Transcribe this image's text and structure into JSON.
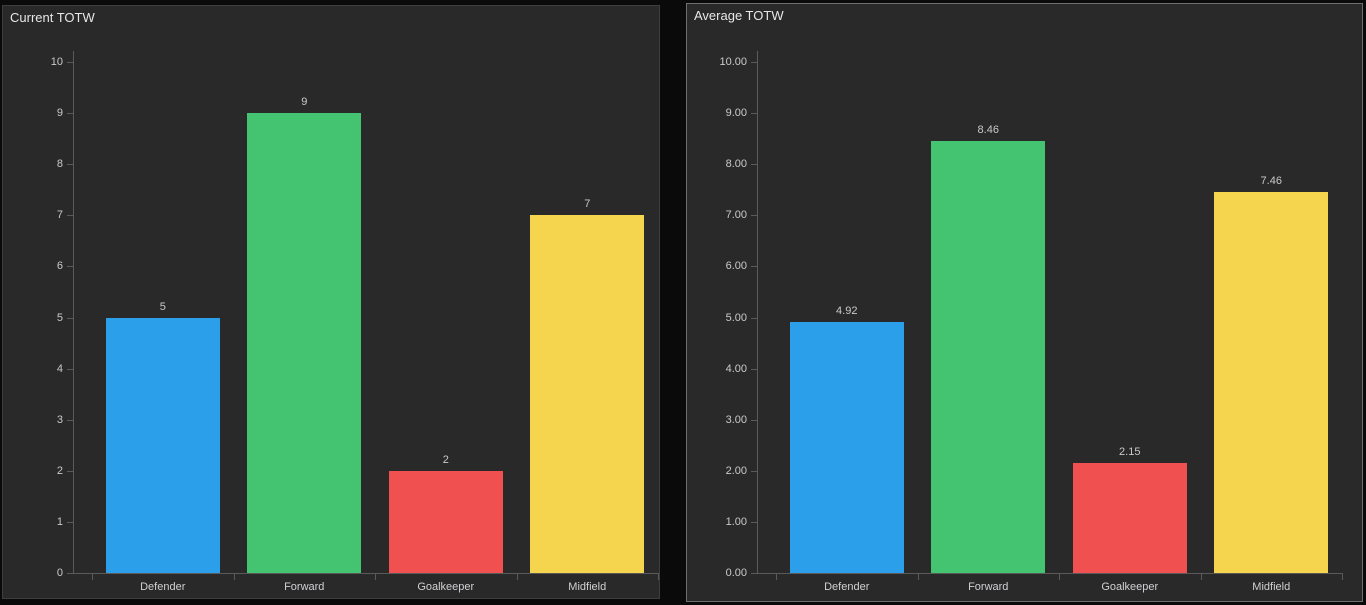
{
  "chart_data": [
    {
      "type": "bar",
      "title": "Current TOTW",
      "categories": [
        "Defender",
        "Forward",
        "Goalkeeper",
        "Midfield"
      ],
      "values": [
        5,
        9,
        2,
        7
      ],
      "bar_labels": [
        "5",
        "9",
        "2",
        "7"
      ],
      "bar_colors": [
        "#2b9fe9",
        "#44c371",
        "#f05050",
        "#f5d54d"
      ],
      "xlabel": "",
      "ylabel": "",
      "ylim": [
        0,
        10
      ],
      "y_tick_labels": [
        "0",
        "1",
        "2",
        "3",
        "4",
        "5",
        "6",
        "7",
        "8",
        "9",
        "10"
      ],
      "grid": false,
      "legend_position": "none"
    },
    {
      "type": "bar",
      "title": "Average TOTW",
      "categories": [
        "Defender",
        "Forward",
        "Goalkeeper",
        "Midfield"
      ],
      "values": [
        4.92,
        8.46,
        2.15,
        7.46
      ],
      "bar_labels": [
        "4.92",
        "8.46",
        "2.15",
        "7.46"
      ],
      "bar_colors": [
        "#2b9fe9",
        "#44c371",
        "#f05050",
        "#f5d54d"
      ],
      "xlabel": "",
      "ylabel": "",
      "ylim": [
        0,
        10
      ],
      "y_tick_labels": [
        "0.00",
        "1.00",
        "2.00",
        "3.00",
        "4.00",
        "5.00",
        "6.00",
        "7.00",
        "8.00",
        "9.00",
        "10.00"
      ],
      "grid": false,
      "legend_position": "none"
    }
  ],
  "theme": {
    "page_bg": "#0a0a0a",
    "panel_bg": "#292929",
    "panel_border_left_chart": "#3d3d3d",
    "panel_border_right_chart": "#6f6f6f",
    "axis_color": "#5a5a5a",
    "tick_label_color": "#c9cacc",
    "category_label_color": "#d0d1d3",
    "value_label_color": "#c9cacc",
    "title_color": "#e6e7e9"
  }
}
